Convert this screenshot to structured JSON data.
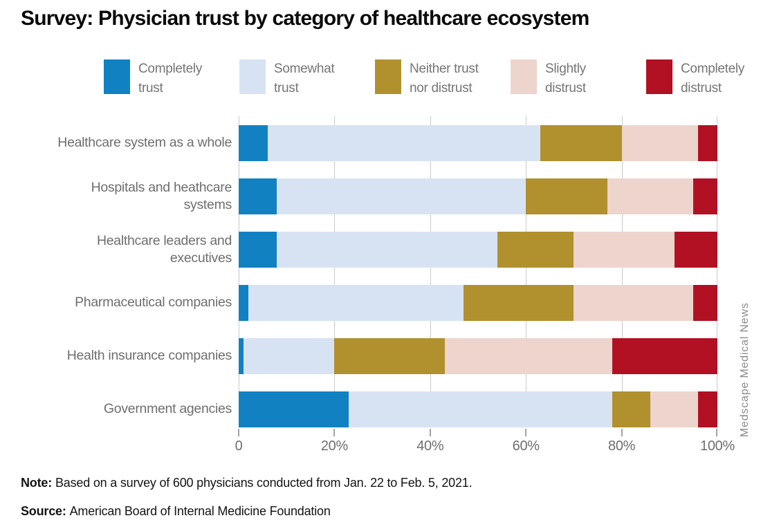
{
  "title": "Survey: Physician trust by category of healthcare ecosystem",
  "watermark": "Medscape Medical News",
  "note": {
    "label": "Note:",
    "text": "Based on a survey of 600 physicians conducted from Jan. 22 to Feb. 5, 2021."
  },
  "source": {
    "label": "Source:",
    "text": "American Board of Internal Medicine Foundation"
  },
  "row_labels": [
    {
      "line1": "Healthcare system as a whole",
      "line2": ""
    },
    {
      "line1": "Hospitals and heathcare",
      "line2": "systems"
    },
    {
      "line1": "Healthcare leaders and",
      "line2": "executives"
    },
    {
      "line1": "Pharmaceutical companies",
      "line2": ""
    },
    {
      "line1": "Health insurance companies",
      "line2": ""
    },
    {
      "line1": "Government agencies",
      "line2": ""
    }
  ],
  "chart_data": {
    "type": "bar",
    "orientation": "horizontal",
    "stacked": true,
    "unit": "percent",
    "title": "Survey: Physician trust by category of healthcare ecosystem",
    "categories": [
      "Healthcare system as a whole",
      "Hospitals and heathcare systems",
      "Healthcare leaders and executives",
      "Pharmaceutical companies",
      "Health insurance companies",
      "Government agencies"
    ],
    "series": [
      {
        "name": "Completely trust",
        "color": "#1181c2",
        "values": [
          6,
          8,
          8,
          2,
          1,
          23
        ]
      },
      {
        "name": "Somewhat trust",
        "color": "#d7e3f2",
        "values": [
          57,
          52,
          46,
          45,
          19,
          55
        ]
      },
      {
        "name": "Neither trust nor distrust",
        "color": "#b1902e",
        "values": [
          17,
          17,
          16,
          23,
          23,
          8
        ]
      },
      {
        "name": "Slightly distrust",
        "color": "#edd4cc",
        "values": [
          16,
          18,
          21,
          25,
          35,
          10
        ]
      },
      {
        "name": "Completely distrust",
        "color": "#b11123",
        "values": [
          4,
          5,
          9,
          5,
          22,
          4
        ]
      }
    ],
    "x_ticks": [
      "0",
      "20%",
      "40%",
      "60%",
      "80%",
      "100%"
    ],
    "xlim": [
      0,
      100
    ],
    "grid": "vertical",
    "legend_position": "top",
    "colors": {
      "gridline": "#c9c9c9",
      "tick": "#a3a3a3",
      "axis_text": "#6e6e6e",
      "category_text": "#6e6e6e",
      "legend_text": "#757575",
      "background": "#ffffff"
    }
  }
}
